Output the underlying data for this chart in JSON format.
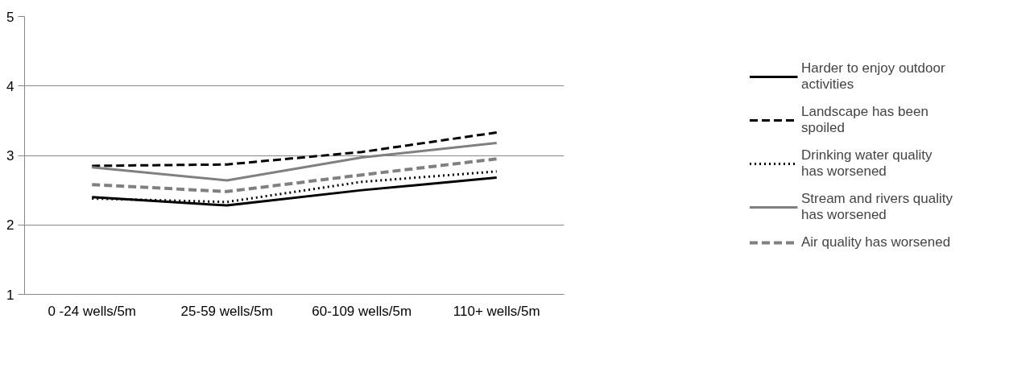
{
  "chart_data": {
    "type": "line",
    "categories": [
      "0 -24 wells/5m",
      "25-59 wells/5m",
      "60-109 wells/5m",
      "110+ wells/5m"
    ],
    "series": [
      {
        "name": "Harder to enjoy outdoor activities",
        "color": "#000000",
        "line_style": "solid",
        "values": [
          2.4,
          2.28,
          2.5,
          2.68
        ]
      },
      {
        "name": "Landscape has been spoiled",
        "color": "#000000",
        "line_style": "dashed",
        "values": [
          2.85,
          2.87,
          3.05,
          3.33
        ]
      },
      {
        "name": "Drinking water quality has worsened",
        "color": "#000000",
        "line_style": "dotted",
        "values": [
          2.38,
          2.33,
          2.62,
          2.77
        ]
      },
      {
        "name": "Stream and rivers quality has worsened",
        "color": "#808080",
        "line_style": "solid",
        "values": [
          2.83,
          2.64,
          2.97,
          3.18
        ]
      },
      {
        "name": "Air quality has worsened",
        "color": "#808080",
        "line_style": "dashed",
        "values": [
          2.58,
          2.48,
          2.72,
          2.95
        ]
      }
    ],
    "ylim": [
      1,
      5
    ],
    "yticks": [
      1,
      2,
      3,
      4,
      5
    ],
    "grid": "y",
    "legend": "right",
    "marker": "none"
  }
}
